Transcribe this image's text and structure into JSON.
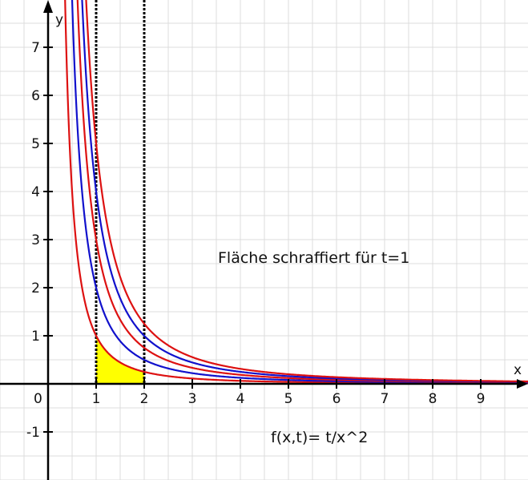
{
  "chart_data": {
    "type": "line",
    "function": "f(x,t)= t/x^2",
    "annotation": "Fläche schraffiert für t=1",
    "formula_label": "f(x,t)= t/x^2",
    "xlabel": "x",
    "ylabel": "y",
    "xlim": [
      -1,
      10
    ],
    "ylim": [
      -2,
      8
    ],
    "x_ticks": [
      "1",
      "2",
      "3",
      "4",
      "5",
      "6",
      "7",
      "8",
      "9"
    ],
    "y_ticks": [
      "-1",
      "1",
      "2",
      "3",
      "4",
      "5",
      "6",
      "7"
    ],
    "origin_label": "0",
    "grid": true,
    "grid_step": 0.5,
    "series": [
      {
        "t": 1,
        "color": "#dd1111"
      },
      {
        "t": 2,
        "color": "#1111cc"
      },
      {
        "t": 3,
        "color": "#dd1111"
      },
      {
        "t": 4,
        "color": "#1111cc"
      },
      {
        "t": 5,
        "color": "#dd1111"
      }
    ],
    "shaded_area": {
      "t": 1,
      "from": 1,
      "to": 2,
      "color": "#ffff00"
    },
    "vertical_lines": [
      1,
      2
    ]
  }
}
